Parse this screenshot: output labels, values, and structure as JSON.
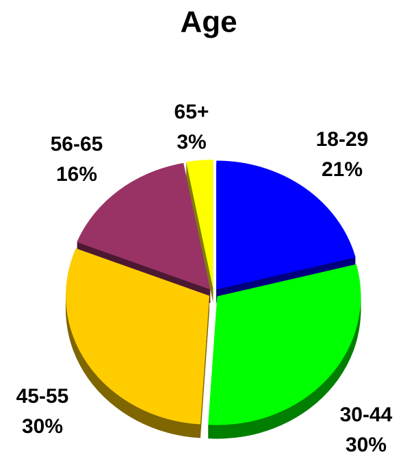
{
  "chart_data": {
    "type": "pie",
    "title": "Age",
    "categories": [
      "18-29",
      "30-44",
      "45-55",
      "56-65",
      "65+"
    ],
    "values": [
      21,
      30,
      30,
      16,
      3
    ],
    "value_labels": [
      "21%",
      "30%",
      "30%",
      "16%",
      "3%"
    ],
    "colors": [
      "#0000ff",
      "#00ff00",
      "#ffcc00",
      "#993366",
      "#ffff00"
    ]
  }
}
